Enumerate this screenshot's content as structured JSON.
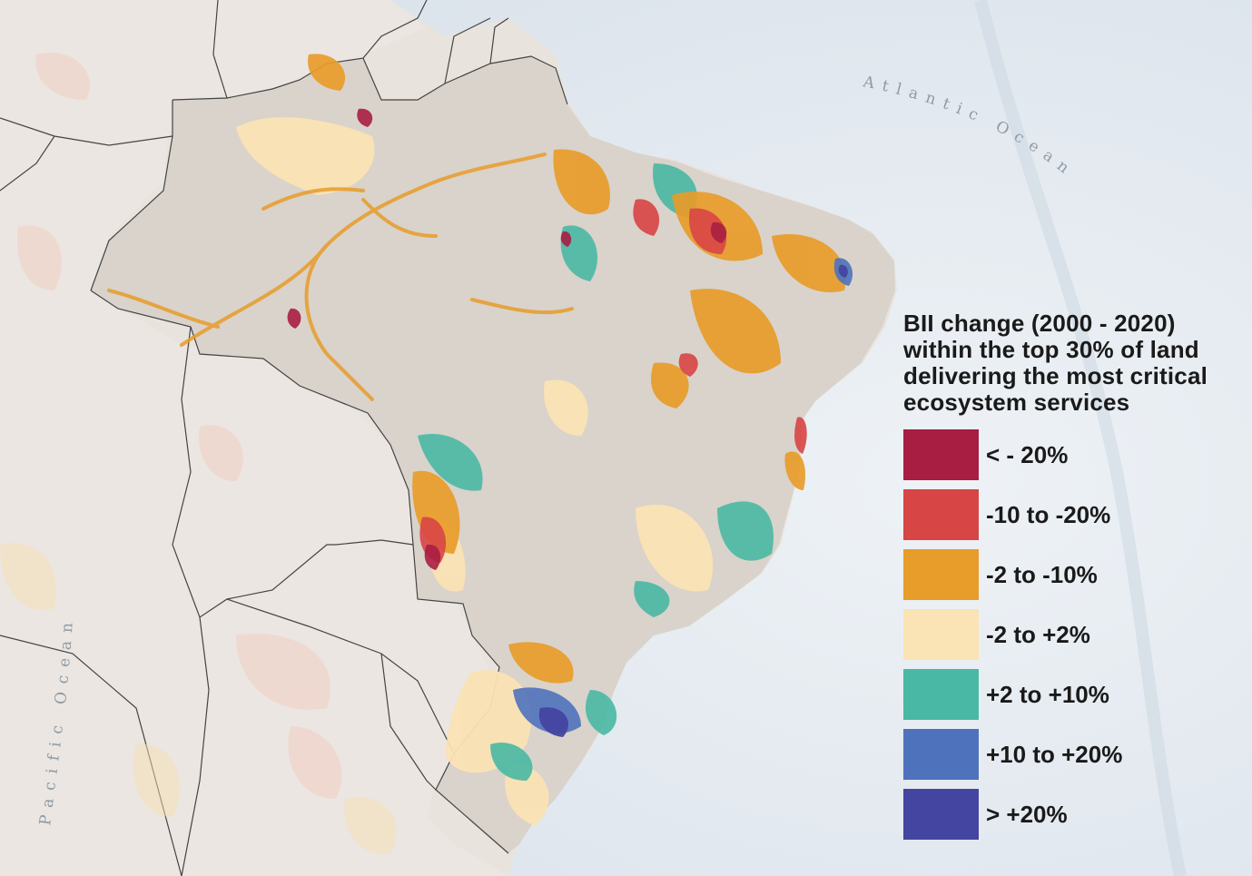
{
  "map": {
    "ocean_labels": {
      "atlantic": "Atlantic Ocean",
      "pacific": "Pacific Ocean"
    }
  },
  "legend": {
    "title_lines": [
      "BII change (2000 - 2020)",
      "within the top 30% of land",
      "delivering the most critical",
      "ecosystem services"
    ],
    "items": [
      {
        "label": "< - 20%",
        "color": "#a81e42"
      },
      {
        "label": "-10 to -20%",
        "color": "#d84545"
      },
      {
        "label": "-2 to -10%",
        "color": "#e89c2a"
      },
      {
        "label": "-2 to +2%",
        "color": "#fae3b4"
      },
      {
        "label": "+2 to +10%",
        "color": "#49b8a4"
      },
      {
        "label": "+10 to +20%",
        "color": "#4f72bd"
      },
      {
        "label": "> +20%",
        "color": "#4345a1"
      }
    ]
  }
}
